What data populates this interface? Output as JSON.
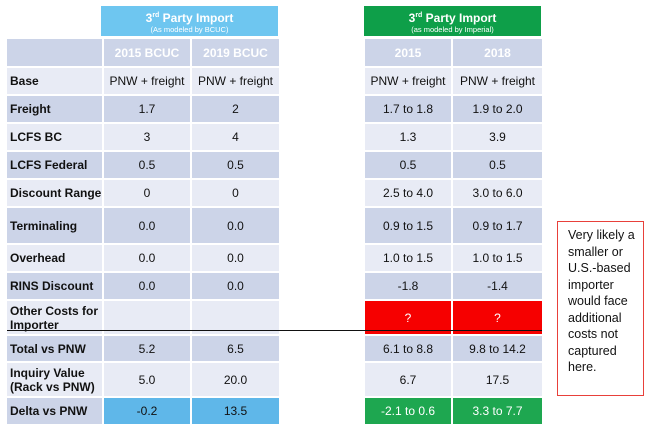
{
  "left_header": {
    "title_main": "3",
    "title_sup": "rd",
    "title_rest": " Party Import",
    "subtitle": "(As modeled by BCUC)"
  },
  "right_header": {
    "title_main": "3",
    "title_sup": "rd",
    "title_rest": " Party Import",
    "subtitle": "(as modeled by Imperial)"
  },
  "columns": {
    "left": [
      "2015 BCUC",
      "2019 BCUC"
    ],
    "right": [
      "2015",
      "2018"
    ]
  },
  "rows": [
    {
      "label": "Base",
      "left": [
        "PNW + freight",
        "PNW + freight"
      ],
      "right": [
        "PNW + freight",
        "PNW + freight"
      ]
    },
    {
      "label": "Freight",
      "left": [
        "1.7",
        "2"
      ],
      "right": [
        "1.7 to 1.8",
        "1.9 to 2.0"
      ]
    },
    {
      "label": "LCFS BC",
      "left": [
        "3",
        "4"
      ],
      "right": [
        "1.3",
        "3.9"
      ]
    },
    {
      "label": "LCFS Federal",
      "left": [
        "0.5",
        "0.5"
      ],
      "right": [
        "0.5",
        "0.5"
      ]
    },
    {
      "label": "Discount Range",
      "left": [
        "0",
        "0"
      ],
      "right": [
        "2.5 to 4.0",
        "3.0 to 6.0"
      ]
    },
    {
      "label": "Terminaling",
      "left": [
        "0.0",
        "0.0"
      ],
      "right": [
        "0.9 to 1.5",
        "0.9 to 1.7"
      ]
    },
    {
      "label": "Overhead",
      "left": [
        "0.0",
        "0.0"
      ],
      "right": [
        "1.0 to 1.5",
        "1.0 to 1.5"
      ]
    },
    {
      "label": "RINS Discount",
      "left": [
        "0.0",
        "0.0"
      ],
      "right": [
        "-1.8",
        "-1.4"
      ]
    },
    {
      "label": "Other Costs for Importer",
      "left": [
        "",
        ""
      ],
      "right": [
        "?",
        "?"
      ]
    },
    {
      "label": "Total vs PNW",
      "left": [
        "5.2",
        "6.5"
      ],
      "right": [
        "6.1 to 8.8",
        "9.8 to 14.2"
      ]
    },
    {
      "label": "Inquiry Value (Rack vs PNW)",
      "left": [
        "5.0",
        "20.0"
      ],
      "right": [
        "6.7",
        "17.5"
      ]
    },
    {
      "label": "Delta vs PNW",
      "left": [
        "-0.2",
        "13.5"
      ],
      "right": [
        "-2.1 to 0.6",
        "3.3 to 7.7"
      ]
    }
  ],
  "note": "Very likely a smaller or U.S.-based importer would face additional costs not captured here.",
  "colors": {
    "header_blue": "#6ec6f0",
    "header_green": "#0e9f49",
    "cell_dark": "#ccd4e8",
    "cell_light": "#e8ebf5",
    "highlight_red": "#f60000",
    "delta_blue": "#5fb7e9",
    "delta_green": "#1ea750",
    "note_border": "#e8403a"
  }
}
